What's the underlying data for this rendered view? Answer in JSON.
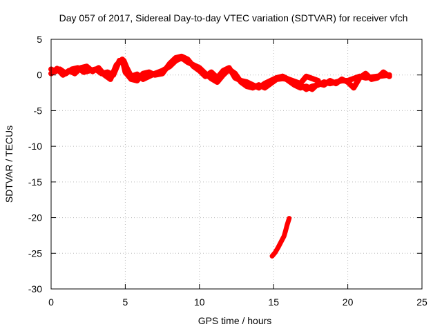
{
  "chart_data": {
    "type": "scatter",
    "title": "Day 057 of 2017, Sidereal Day-to-day VTEC variation (SDTVAR) for receiver vfch",
    "xlabel": "GPS time / hours",
    "ylabel": "SDTVAR / TECUs",
    "xlim": [
      0,
      25
    ],
    "ylim": [
      -30,
      5
    ],
    "x_ticks": [
      0,
      5,
      10,
      15,
      20,
      25
    ],
    "x_tick_labels": [
      "0",
      "5",
      "10",
      "15",
      "20",
      "25"
    ],
    "y_ticks": [
      5,
      0,
      -5,
      -10,
      -15,
      -20,
      -25,
      -30
    ],
    "y_tick_labels": [
      "5",
      "0",
      "-5",
      "-10",
      "-15",
      "-20",
      "-25",
      "-30"
    ],
    "grid": true,
    "series": [
      {
        "name": "SDTVAR",
        "color": "#ff0000",
        "segments": [
          [
            [
              0.0,
              0.8
            ],
            [
              0.3,
              0.5
            ],
            [
              0.6,
              0.8
            ],
            [
              1.0,
              0.2
            ],
            [
              1.4,
              0.8
            ],
            [
              1.8,
              1.0
            ],
            [
              2.2,
              0.4
            ],
            [
              2.6,
              0.6
            ],
            [
              3.0,
              0.8
            ],
            [
              3.4,
              0.2
            ],
            [
              3.8,
              0.4
            ],
            [
              4.2,
              0.0
            ],
            [
              4.6,
              2.0
            ],
            [
              4.9,
              2.0
            ],
            [
              5.1,
              1.0
            ],
            [
              5.4,
              -0.2
            ],
            [
              5.8,
              0.1
            ],
            [
              6.2,
              -0.6
            ],
            [
              6.6,
              -0.2
            ],
            [
              7.0,
              0.2
            ],
            [
              7.5,
              0.6
            ],
            [
              8.0,
              1.2
            ],
            [
              8.4,
              2.0
            ],
            [
              8.8,
              2.4
            ],
            [
              9.2,
              1.8
            ],
            [
              9.6,
              1.4
            ],
            [
              10.0,
              1.0
            ],
            [
              10.4,
              0.2
            ],
            [
              10.8,
              -0.5
            ],
            [
              11.2,
              -1.0
            ],
            [
              11.6,
              0.0
            ],
            [
              12.0,
              0.8
            ],
            [
              12.4,
              0.2
            ],
            [
              12.8,
              -1.0
            ],
            [
              13.2,
              -1.6
            ],
            [
              13.6,
              -1.8
            ],
            [
              14.0,
              -1.4
            ],
            [
              14.4,
              -1.8
            ],
            [
              14.8,
              -1.2
            ],
            [
              15.2,
              -0.6
            ],
            [
              15.6,
              -0.5
            ],
            [
              16.0,
              -0.6
            ],
            [
              16.4,
              -1.0
            ],
            [
              16.8,
              -1.4
            ],
            [
              17.2,
              -2.0
            ],
            [
              17.6,
              -1.6
            ],
            [
              18.0,
              -1.4
            ],
            [
              18.4,
              -1.0
            ],
            [
              18.8,
              -1.2
            ],
            [
              19.2,
              -1.0
            ],
            [
              19.6,
              -0.8
            ],
            [
              20.0,
              -0.8
            ],
            [
              20.4,
              -0.5
            ],
            [
              20.8,
              -0.2
            ],
            [
              21.2,
              -0.4
            ],
            [
              21.6,
              -0.3
            ],
            [
              22.0,
              -0.2
            ],
            [
              22.4,
              -0.1
            ],
            [
              22.8,
              0.0
            ]
          ],
          [
            [
              0.0,
              0.2
            ],
            [
              0.4,
              0.9
            ],
            [
              0.8,
              0.0
            ],
            [
              1.2,
              0.6
            ],
            [
              1.6,
              0.2
            ],
            [
              2.0,
              1.0
            ],
            [
              2.4,
              1.2
            ],
            [
              2.8,
              0.5
            ],
            [
              3.2,
              1.0
            ],
            [
              3.6,
              0.0
            ],
            [
              4.0,
              -0.6
            ],
            [
              4.4,
              1.4
            ],
            [
              4.8,
              2.2
            ],
            [
              5.0,
              0.4
            ],
            [
              5.4,
              -0.6
            ],
            [
              5.8,
              -0.8
            ],
            [
              6.2,
              0.2
            ],
            [
              6.6,
              0.4
            ],
            [
              7.0,
              0.0
            ],
            [
              7.5,
              0.2
            ],
            [
              8.0,
              1.6
            ],
            [
              8.4,
              2.4
            ],
            [
              8.8,
              2.6
            ],
            [
              9.2,
              2.2
            ],
            [
              9.6,
              1.2
            ],
            [
              10.0,
              0.6
            ],
            [
              10.4,
              -0.2
            ],
            [
              10.8,
              0.4
            ],
            [
              11.2,
              -0.4
            ],
            [
              11.6,
              0.6
            ],
            [
              12.0,
              1.0
            ],
            [
              12.4,
              -0.4
            ],
            [
              12.8,
              -0.8
            ],
            [
              13.2,
              -1.0
            ],
            [
              13.6,
              -1.4
            ],
            [
              14.0,
              -1.8
            ],
            [
              14.4,
              -1.2
            ],
            [
              14.8,
              -0.8
            ],
            [
              15.2,
              -0.4
            ],
            [
              15.6,
              -0.2
            ],
            [
              16.0,
              -0.8
            ],
            [
              16.4,
              -1.4
            ],
            [
              16.8,
              -1.8
            ],
            [
              17.2,
              -1.6
            ],
            [
              17.6,
              -2.0
            ],
            [
              18.0,
              -1.2
            ],
            [
              18.4,
              -1.4
            ],
            [
              18.8,
              -0.8
            ],
            [
              19.2,
              -1.2
            ],
            [
              19.6,
              -0.6
            ],
            [
              20.0,
              -1.0
            ],
            [
              20.4,
              -1.8
            ],
            [
              20.8,
              -0.4
            ],
            [
              21.2,
              0.2
            ],
            [
              21.6,
              -0.6
            ],
            [
              22.0,
              -0.4
            ],
            [
              22.4,
              0.4
            ],
            [
              22.8,
              -0.2
            ]
          ],
          [
            [
              15.6,
              -0.2
            ],
            [
              16.0,
              -0.6
            ],
            [
              16.4,
              -0.9
            ],
            [
              16.8,
              -1.2
            ],
            [
              17.0,
              -0.7
            ],
            [
              17.2,
              -0.2
            ],
            [
              17.6,
              -0.5
            ],
            [
              18.0,
              -0.8
            ]
          ],
          [
            [
              14.9,
              -25.4
            ],
            [
              15.1,
              -24.9
            ],
            [
              15.3,
              -24.2
            ],
            [
              15.5,
              -23.4
            ],
            [
              15.7,
              -22.6
            ],
            [
              15.8,
              -21.9
            ],
            [
              15.9,
              -21.1
            ],
            [
              16.05,
              -20.1
            ]
          ]
        ]
      }
    ]
  }
}
